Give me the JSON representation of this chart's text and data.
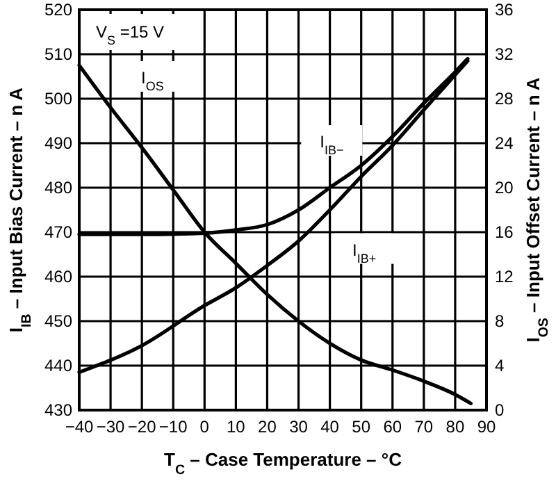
{
  "chart_data": {
    "type": "line",
    "xlabel": "T$_{C}$ – Case Temperature – °C",
    "ylabel": "I$_{IB}$ – Input Bias Current – n A",
    "y2label": "I$_{OS}$ – Input Offset Current – n A",
    "annotations": [
      "V$_{S}$ =15 V"
    ],
    "xlim": [
      -40,
      90
    ],
    "xticks": [
      -40,
      -30,
      -20,
      -10,
      0,
      10,
      20,
      30,
      40,
      50,
      60,
      70,
      80,
      90
    ],
    "ylim": [
      430,
      520
    ],
    "yticks": [
      430,
      440,
      450,
      460,
      470,
      480,
      490,
      500,
      510,
      520
    ],
    "y2lim": [
      0,
      36
    ],
    "y2ticks": [
      0,
      4,
      8,
      12,
      16,
      20,
      24,
      28,
      32,
      36
    ],
    "grid": true,
    "legend": false,
    "line_style": "solid",
    "series": [
      {
        "name": "I$_{OS}$",
        "color": "#000000",
        "axis": "y2",
        "x": [
          -40,
          -30,
          -20,
          -10,
          0,
          10,
          20,
          30,
          40,
          50,
          60,
          70,
          80,
          85
        ],
        "values": [
          31,
          27.2,
          23.6,
          19.8,
          16,
          13.2,
          10.4,
          8,
          6,
          4.5,
          3.6,
          2.6,
          1.4,
          0.6
        ]
      },
      {
        "name": "I$_{IB−}$",
        "color": "#000000",
        "x": [
          -40,
          -20,
          0,
          10,
          20,
          30,
          40,
          50,
          60,
          70,
          80,
          84
        ],
        "values": [
          469.5,
          469.5,
          469.8,
          470.5,
          471.7,
          475,
          480,
          485,
          491.5,
          499,
          506,
          509
        ]
      },
      {
        "name": "I$_{IB+}$",
        "color": "#000000",
        "x": [
          -40,
          -20,
          0,
          10,
          20,
          30,
          40,
          50,
          60,
          70,
          84
        ],
        "values": [
          438.5,
          444.5,
          453.5,
          457.5,
          462.5,
          468,
          475,
          482.5,
          489.5,
          497.5,
          508.5
        ]
      }
    ]
  }
}
